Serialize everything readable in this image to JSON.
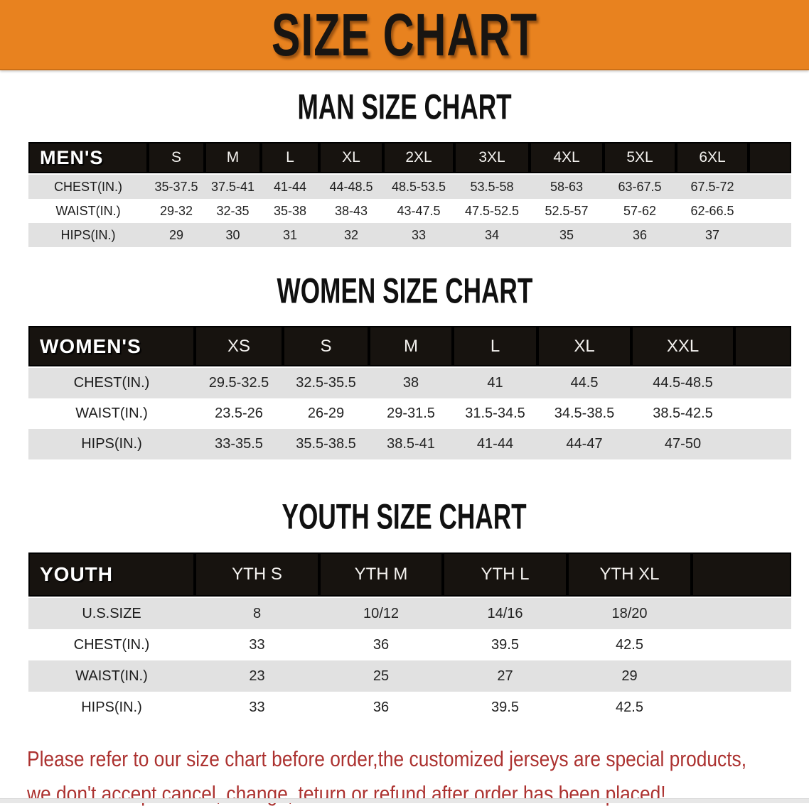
{
  "banner": {
    "title": "SIZE CHART"
  },
  "colors": {
    "banner_bg": "#E8821F",
    "banner_text": "#181512",
    "header_bar_bg": "#17130F",
    "header_bar_text": "#FFFFFF",
    "row_alt_bg": "#E1E1E1",
    "row_bg": "#FFFFFF",
    "heading_text": "#101010",
    "disclaimer_text": "#AC3230"
  },
  "sections": [
    {
      "heading": "MAN SIZE CHART",
      "group_label": "MEN'S",
      "size_columns": [
        "S",
        "M",
        "L",
        "XL",
        "2XL",
        "3XL",
        "4XL",
        "5XL",
        "6XL"
      ],
      "rows": [
        {
          "label": "CHEST(IN.)",
          "values": [
            "35-37.5",
            "37.5-41",
            "41-44",
            "44-48.5",
            "48.5-53.5",
            "53.5-58",
            "58-63",
            "63-67.5",
            "67.5-72"
          ]
        },
        {
          "label": "WAIST(IN.)",
          "values": [
            "29-32",
            "32-35",
            "35-38",
            "38-43",
            "43-47.5",
            "47.5-52.5",
            "52.5-57",
            "57-62",
            "62-66.5"
          ]
        },
        {
          "label": "HIPS(IN.)",
          "values": [
            "29",
            "30",
            "31",
            "32",
            "33",
            "34",
            "35",
            "36",
            "37"
          ]
        }
      ]
    },
    {
      "heading": "WOMEN SIZE CHART",
      "group_label": "WOMEN'S",
      "size_columns": [
        "XS",
        "S",
        "M",
        "L",
        "XL",
        "XXL"
      ],
      "rows": [
        {
          "label": "CHEST(IN.)",
          "values": [
            "29.5-32.5",
            "32.5-35.5",
            "38",
            "41",
            "44.5",
            "44.5-48.5"
          ]
        },
        {
          "label": "WAIST(IN.)",
          "values": [
            "23.5-26",
            "26-29",
            "29-31.5",
            "31.5-34.5",
            "34.5-38.5",
            "38.5-42.5"
          ]
        },
        {
          "label": "HIPS(IN.)",
          "values": [
            "33-35.5",
            "35.5-38.5",
            "38.5-41",
            "41-44",
            "44-47",
            "47-50"
          ]
        }
      ]
    },
    {
      "heading": "YOUTH SIZE CHART",
      "group_label": "YOUTH",
      "size_columns": [
        "YTH S",
        "YTH M",
        "YTH L",
        "YTH XL"
      ],
      "rows": [
        {
          "label": "U.S.SIZE",
          "values": [
            "8",
            "10/12",
            "14/16",
            "18/20"
          ]
        },
        {
          "label": "CHEST(IN.)",
          "values": [
            "33",
            "36",
            "39.5",
            "42.5"
          ]
        },
        {
          "label": "WAIST(IN.)",
          "values": [
            "23",
            "25",
            "27",
            "29"
          ]
        },
        {
          "label": "HIPS(IN.)",
          "values": [
            "33",
            "36",
            "39.5",
            "42.5"
          ]
        }
      ]
    }
  ],
  "disclaimer": {
    "line1": "Please refer to our size chart before order,the customized jerseys are special products,",
    "line2": "we don't accept cancel, change, teturn or refund after order has been placed!"
  }
}
